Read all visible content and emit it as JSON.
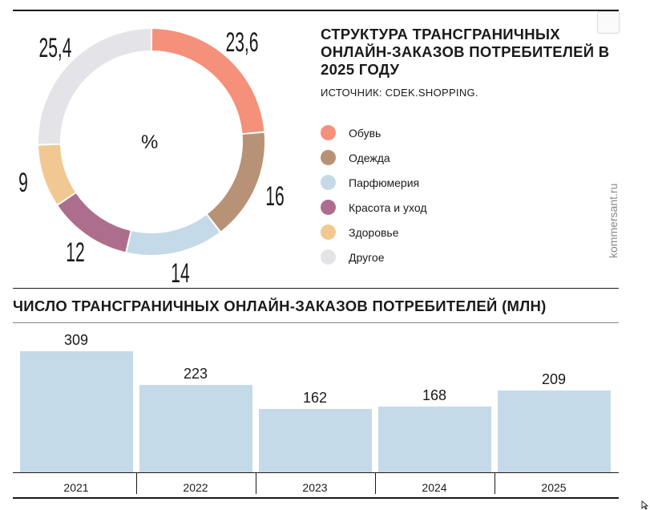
{
  "chart_data": [
    {
      "type": "pie",
      "title": "СТРУКТУРА ТРАНСГРАНИЧНЫХ ОНЛАЙН-ЗАКАЗОВ ПОТРЕБИТЕЛЕЙ В 2025 ГОДУ",
      "source": "ИСТОЧНИК: CDEK.SHOPPING.",
      "unit_label": "%",
      "slices": [
        {
          "label": "Обувь",
          "value": 23.6,
          "value_label": "23,6",
          "color": "#f5907a"
        },
        {
          "label": "Одежда",
          "value": 16,
          "value_label": "16",
          "color": "#b89276"
        },
        {
          "label": "Парфюмерия",
          "value": 14,
          "value_label": "14",
          "color": "#c5dae8"
        },
        {
          "label": "Красота и уход",
          "value": 12,
          "value_label": "12",
          "color": "#ad6e8e"
        },
        {
          "label": "Здоровье",
          "value": 9,
          "value_label": "9",
          "color": "#f2c892"
        },
        {
          "label": "Другое",
          "value": 25.4,
          "value_label": "25,4",
          "color": "#e4e4e8"
        }
      ]
    },
    {
      "type": "bar",
      "title": "ЧИСЛО ТРАНСГРАНИЧНЫХ ОНЛАЙН-ЗАКАЗОВ ПОТРЕБИТЕЛЕЙ (МЛН)",
      "categories": [
        "2021",
        "2022",
        "2023",
        "2024",
        "2025"
      ],
      "values": [
        309,
        223,
        162,
        168,
        209
      ],
      "color": "#c5dae8",
      "ylim": [
        0,
        309
      ]
    }
  ],
  "watermark": "kommersant.ru"
}
